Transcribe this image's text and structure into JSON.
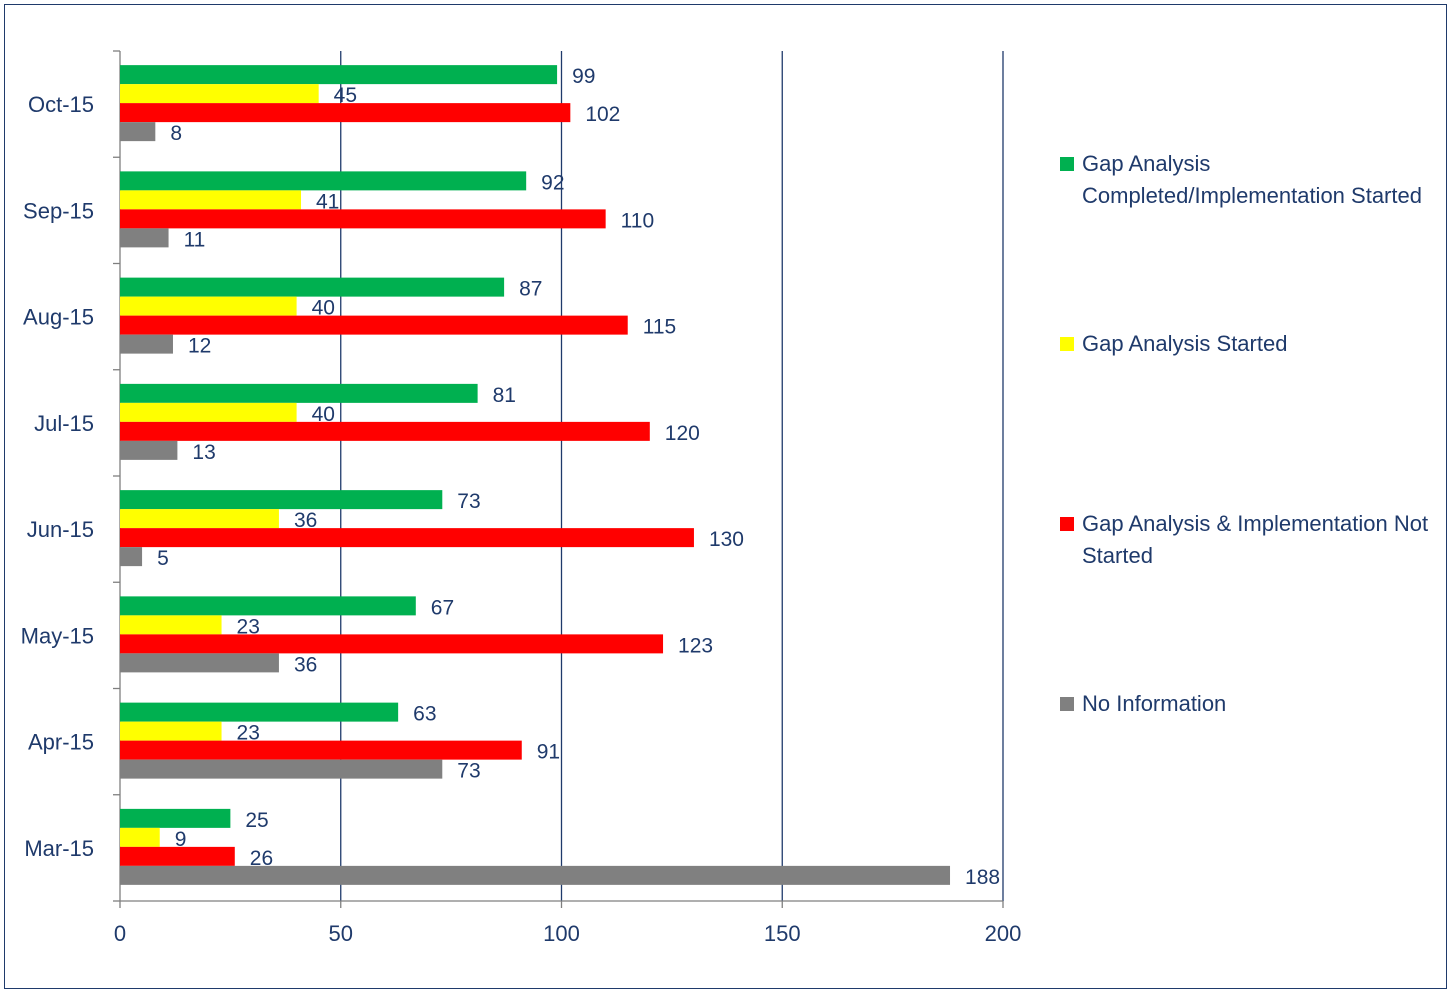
{
  "chart_data": {
    "type": "bar",
    "orientation": "horizontal",
    "categories": [
      "Oct-15",
      "Sep-15",
      "Aug-15",
      "Jul-15",
      "Jun-15",
      "May-15",
      "Apr-15",
      "Mar-15"
    ],
    "series": [
      {
        "name": "Gap Analysis Completed/Implementation Started",
        "color": "#00b050",
        "values": [
          99,
          92,
          87,
          81,
          73,
          67,
          63,
          25
        ]
      },
      {
        "name": "Gap Analysis Started",
        "color": "#ffff00",
        "values": [
          45,
          41,
          40,
          40,
          36,
          23,
          23,
          9
        ]
      },
      {
        "name": "Gap Analysis & Implementation Not Started",
        "color": "#ff0000",
        "values": [
          102,
          110,
          115,
          120,
          130,
          123,
          91,
          26
        ]
      },
      {
        "name": "No Information",
        "color": "#808080",
        "values": [
          8,
          11,
          12,
          13,
          5,
          36,
          73,
          188
        ]
      }
    ],
    "xticks": [
      "0",
      "50",
      "100",
      "150",
      "200"
    ],
    "xlim": [
      0,
      200
    ],
    "grid": "vertical",
    "legend_position": "right",
    "data_labels": true
  }
}
